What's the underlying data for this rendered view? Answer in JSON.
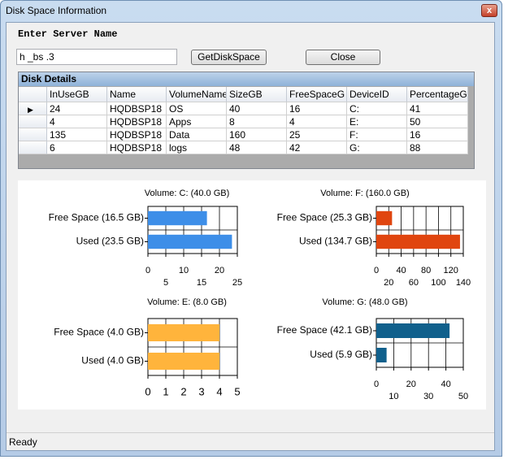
{
  "window": {
    "title": "Disk Space Information"
  },
  "form": {
    "label": "Enter Server Name",
    "server_input": "h _bs .3",
    "get_button": "GetDiskSpace",
    "close_button": "Close"
  },
  "table": {
    "title": "Disk Details",
    "columns": [
      "InUseGB",
      "Name",
      "VolumeName",
      "SizeGB",
      "FreeSpaceG",
      "DeviceID",
      "PercentageG"
    ],
    "rows": [
      [
        24,
        "HQDBSP18",
        "OS",
        40,
        16,
        "C:",
        41
      ],
      [
        4,
        "HQDBSP18",
        "Apps",
        8,
        4,
        "E:",
        50
      ],
      [
        135,
        "HQDBSP18",
        "Data",
        160,
        25,
        "F:",
        16
      ],
      [
        6,
        "HQDBSP18",
        "logs",
        48,
        42,
        "G:",
        88
      ]
    ]
  },
  "chart_data": [
    {
      "type": "bar",
      "orientation": "horizontal",
      "title": "Volume: C: (40.0 GB)",
      "categories": [
        "Free Space (16.5 GB)",
        "Used (23.5 GB)"
      ],
      "values": [
        16.5,
        23.5
      ],
      "color": "#3d8ee8",
      "xlim": [
        0,
        25
      ],
      "xticks": [
        0,
        5,
        10,
        15,
        20,
        25
      ],
      "grid": true
    },
    {
      "type": "bar",
      "orientation": "horizontal",
      "title": "Volume: F: (160.0 GB)",
      "categories": [
        "Free Space (25.3 GB)",
        "Used (134.7 GB)"
      ],
      "values": [
        25.3,
        134.7
      ],
      "color": "#e0450f",
      "xlim": [
        0,
        140
      ],
      "xticks": [
        0,
        20,
        40,
        60,
        80,
        100,
        120,
        140
      ],
      "grid": true
    },
    {
      "type": "bar",
      "orientation": "horizontal",
      "title": "Volume: E: (8.0 GB)",
      "categories": [
        "Free Space (4.0 GB)",
        "Used (4.0 GB)"
      ],
      "values": [
        4.0,
        4.0
      ],
      "color": "#ffb43c",
      "xlim": [
        0,
        5
      ],
      "xticks": [
        0,
        1,
        2,
        3,
        4,
        5
      ],
      "grid": true
    },
    {
      "type": "bar",
      "orientation": "horizontal",
      "title": "Volume: G: (48.0 GB)",
      "categories": [
        "Free Space (42.1 GB)",
        "Used (5.9 GB)"
      ],
      "values": [
        42.1,
        5.9
      ],
      "color": "#10608c",
      "xlim": [
        0,
        50
      ],
      "xticks": [
        0,
        10,
        20,
        30,
        40,
        50
      ],
      "grid": true
    }
  ],
  "status": "Ready"
}
